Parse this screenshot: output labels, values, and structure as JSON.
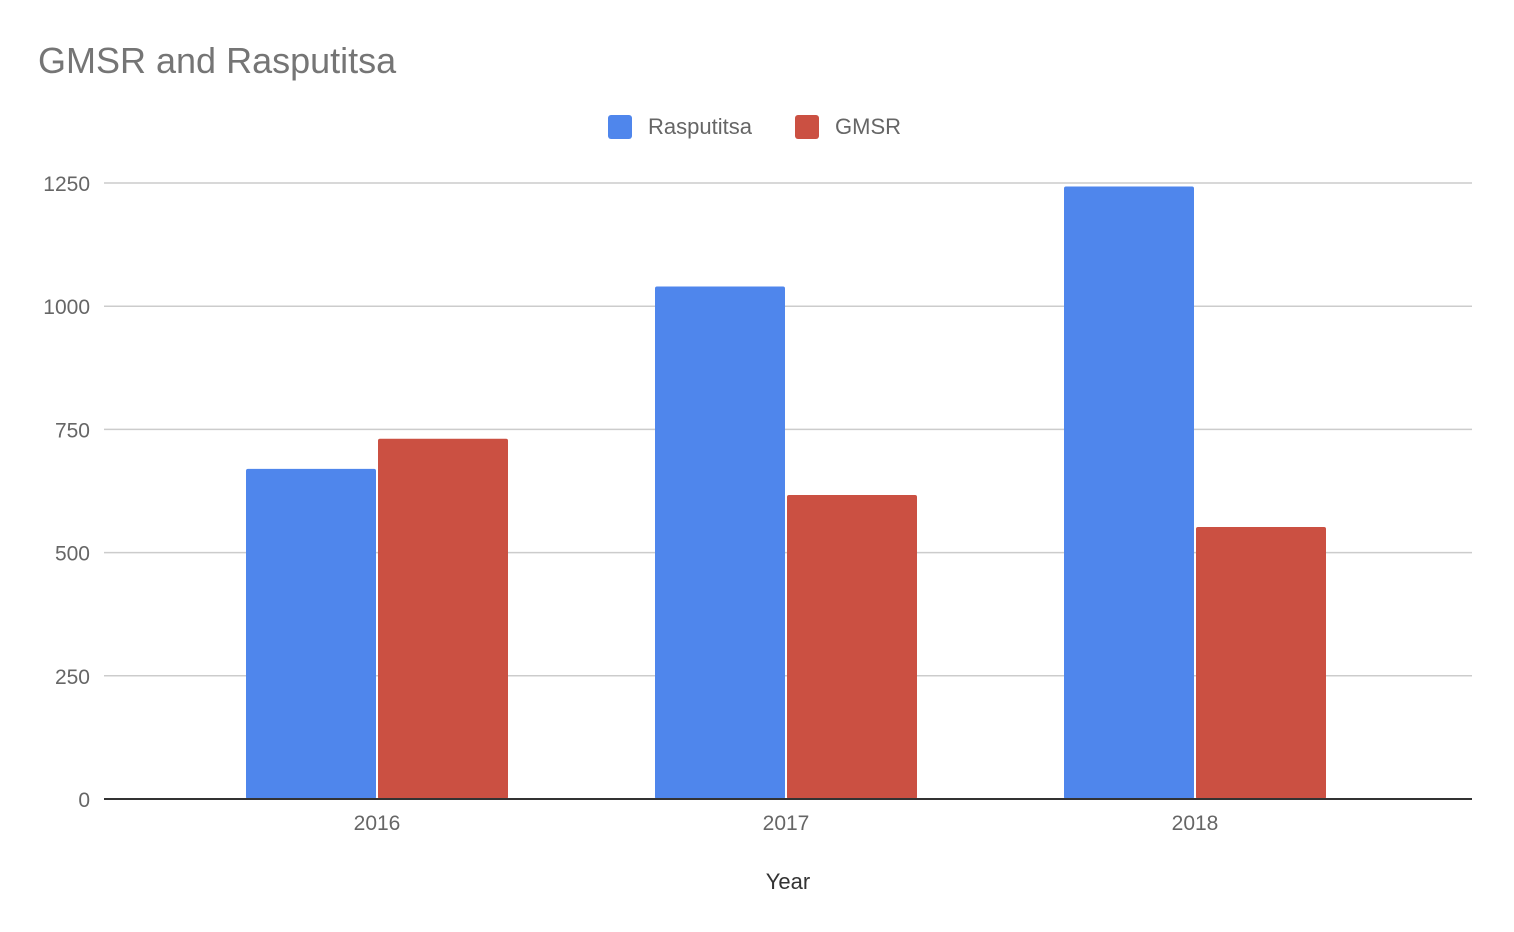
{
  "chart_data": {
    "type": "bar",
    "title": "GMSR and Rasputitsa",
    "xlabel": "Year",
    "ylabel": "",
    "categories": [
      "2016",
      "2017",
      "2018"
    ],
    "series": [
      {
        "name": "Rasputitsa",
        "color": "#4f86ec",
        "values": [
          670,
          1040,
          1243
        ]
      },
      {
        "name": "GMSR",
        "color": "#cb5042",
        "values": [
          731,
          617,
          552
        ]
      }
    ],
    "ylim": [
      0,
      1250
    ],
    "yticks": [
      0,
      250,
      500,
      750,
      1000,
      1250
    ],
    "grid": true,
    "legend": "top-center"
  }
}
